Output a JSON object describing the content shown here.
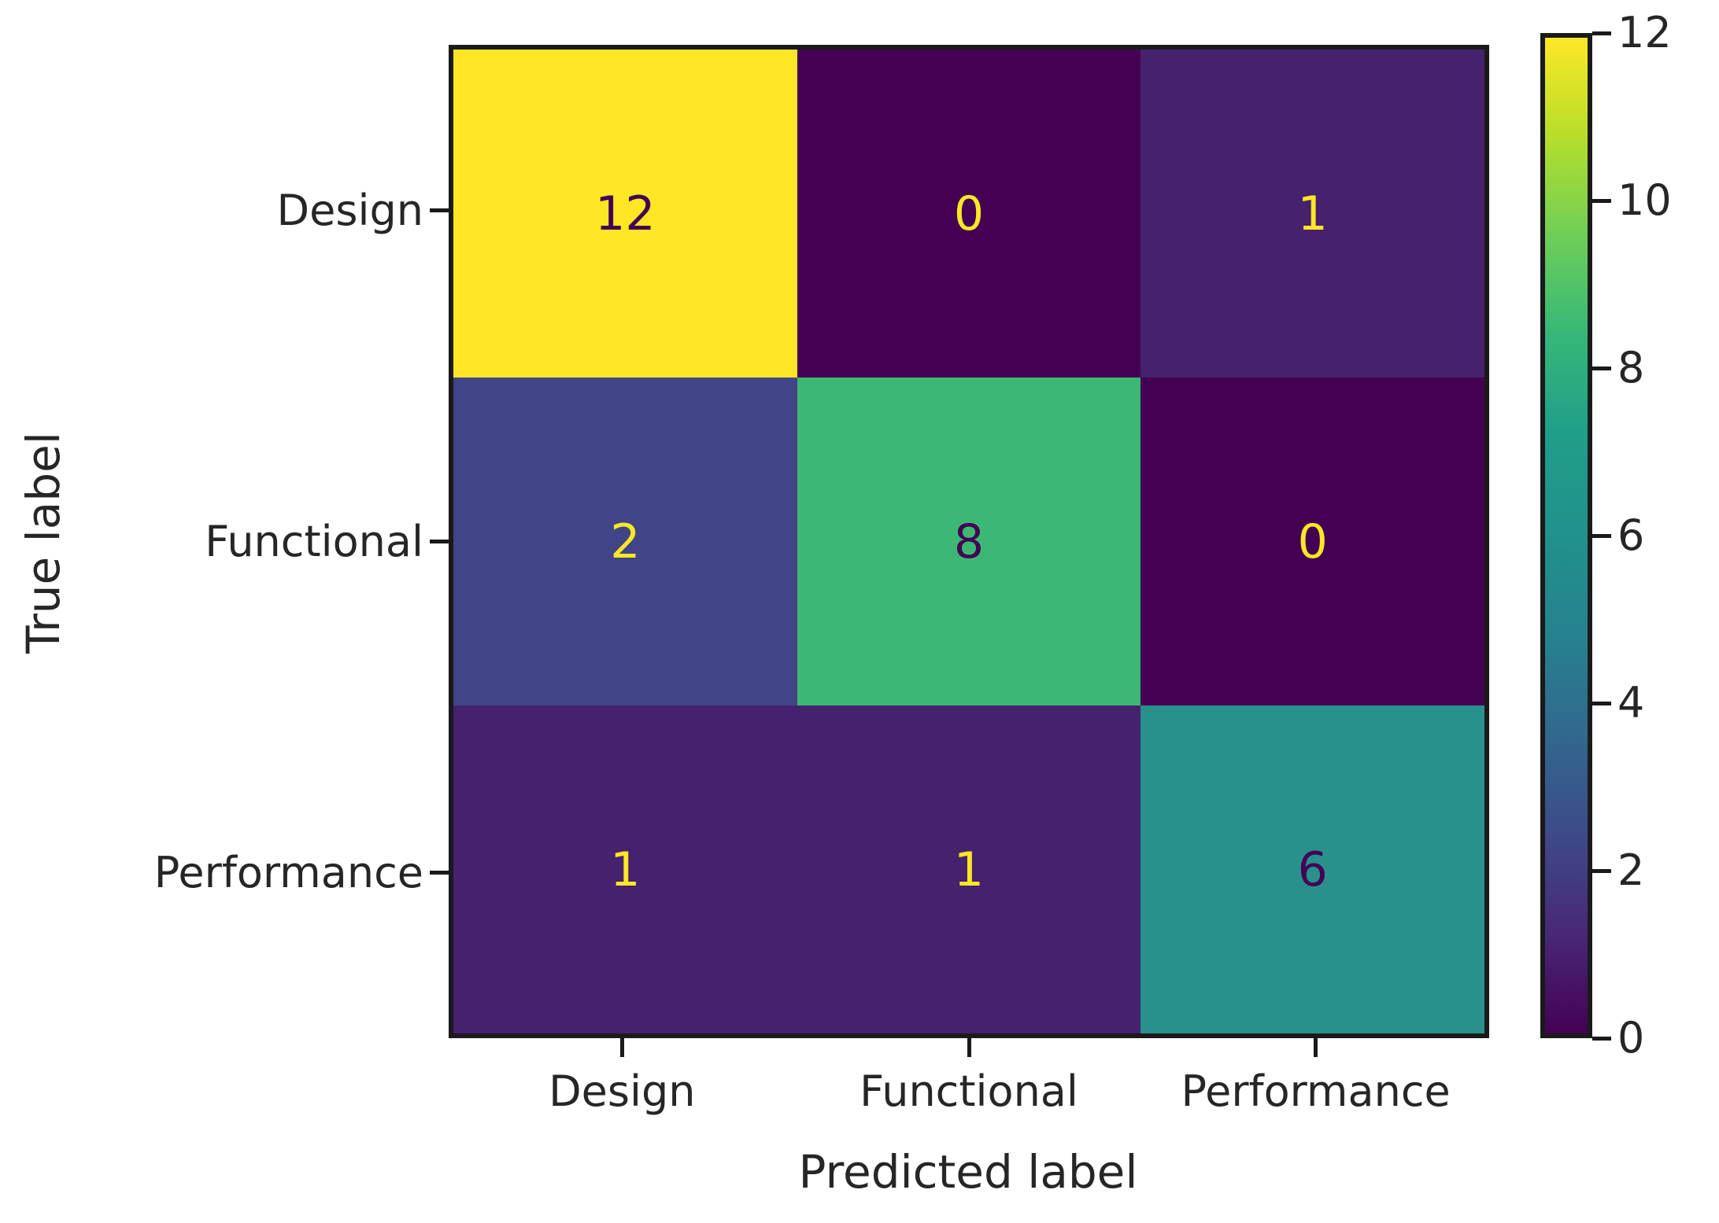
{
  "chart_data": {
    "type": "heatmap",
    "title": "",
    "xlabel": "Predicted label",
    "ylabel": "True label",
    "x_categories": [
      "Design",
      "Functional",
      "Performance"
    ],
    "y_categories": [
      "Design",
      "Functional",
      "Performance"
    ],
    "matrix": [
      [
        12,
        0,
        1
      ],
      [
        2,
        8,
        0
      ],
      [
        1,
        1,
        6
      ]
    ],
    "cell_colors": [
      [
        "#fde725",
        "#440154",
        "#45216e"
      ],
      [
        "#414487",
        "#3cb875",
        "#440154"
      ],
      [
        "#45216e",
        "#45216e",
        "#28918c"
      ]
    ],
    "cell_text_colors": [
      [
        "#440154",
        "#fde725",
        "#fde725"
      ],
      [
        "#fde725",
        "#440154",
        "#fde725"
      ],
      [
        "#fde725",
        "#fde725",
        "#440154"
      ]
    ],
    "colorbar": {
      "min": 0,
      "max": 12,
      "tick_labels": [
        "0",
        "2",
        "4",
        "6",
        "8",
        "10",
        "12"
      ],
      "tick_values": [
        0,
        2,
        4,
        6,
        8,
        10,
        12
      ],
      "position": "right"
    },
    "colormap": {
      "name": "viridis",
      "stops": [
        {
          "pos": 0.0,
          "color": "#440154"
        },
        {
          "pos": 0.1,
          "color": "#482878"
        },
        {
          "pos": 0.2,
          "color": "#3e4a89"
        },
        {
          "pos": 0.3,
          "color": "#31688e"
        },
        {
          "pos": 0.4,
          "color": "#26828e"
        },
        {
          "pos": 0.5,
          "color": "#21918c"
        },
        {
          "pos": 0.6,
          "color": "#1f9e89"
        },
        {
          "pos": 0.7,
          "color": "#35b779"
        },
        {
          "pos": 0.8,
          "color": "#6ece58"
        },
        {
          "pos": 0.9,
          "color": "#b5de2b"
        },
        {
          "pos": 1.0,
          "color": "#fde725"
        }
      ]
    },
    "grid": "off",
    "axis_ranges": {
      "x": [
        "Design",
        "Functional",
        "Performance"
      ],
      "y": [
        "Design",
        "Functional",
        "Performance"
      ]
    }
  },
  "style": {
    "background": "#ffffff",
    "spine_color": "#1a1a1a",
    "text_color": "#262626"
  }
}
